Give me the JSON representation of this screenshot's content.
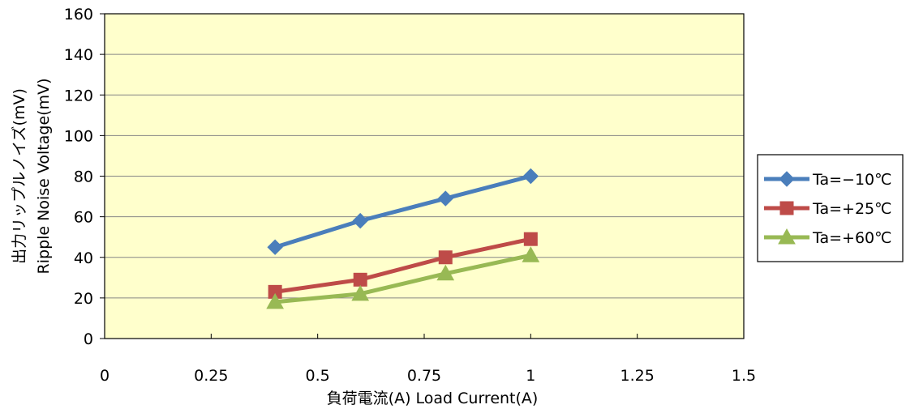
{
  "chart_data": {
    "type": "line",
    "title": "",
    "xlabel": "負荷電流(A)  Load Current(A)",
    "ylabel_lines": [
      "出力リップルノイズ(mV)",
      "Ripple Noise Voltage(mV)"
    ],
    "xlim": [
      0,
      1.5
    ],
    "ylim": [
      0,
      160
    ],
    "x_ticks": [
      0,
      0.25,
      0.5,
      0.75,
      1,
      1.25,
      1.5
    ],
    "x_tick_labels": [
      "0",
      "0.25",
      "0.5",
      "0.75",
      "1",
      "1.25",
      "1.5"
    ],
    "y_ticks": [
      0,
      20,
      40,
      60,
      80,
      100,
      120,
      140,
      160
    ],
    "y_tick_labels": [
      "0",
      "20",
      "40",
      "60",
      "80",
      "100",
      "120",
      "140",
      "160"
    ],
    "grid": "horizontal",
    "legend_position": "right",
    "plot_background": "#ffffcc",
    "series": [
      {
        "name": "Ta=−10℃",
        "color": "#4a7ebb",
        "marker": "diamond",
        "x": [
          0.4,
          0.6,
          0.8,
          1.0
        ],
        "y": [
          45,
          58,
          69,
          80
        ]
      },
      {
        "name": "Ta=+25℃",
        "color": "#be4b48",
        "marker": "square",
        "x": [
          0.4,
          0.6,
          0.8,
          1.0
        ],
        "y": [
          23,
          29,
          40,
          49
        ]
      },
      {
        "name": "Ta=+60℃",
        "color": "#98b954",
        "marker": "triangle",
        "x": [
          0.4,
          0.6,
          0.8,
          1.0
        ],
        "y": [
          18,
          22,
          32,
          41
        ]
      }
    ]
  }
}
